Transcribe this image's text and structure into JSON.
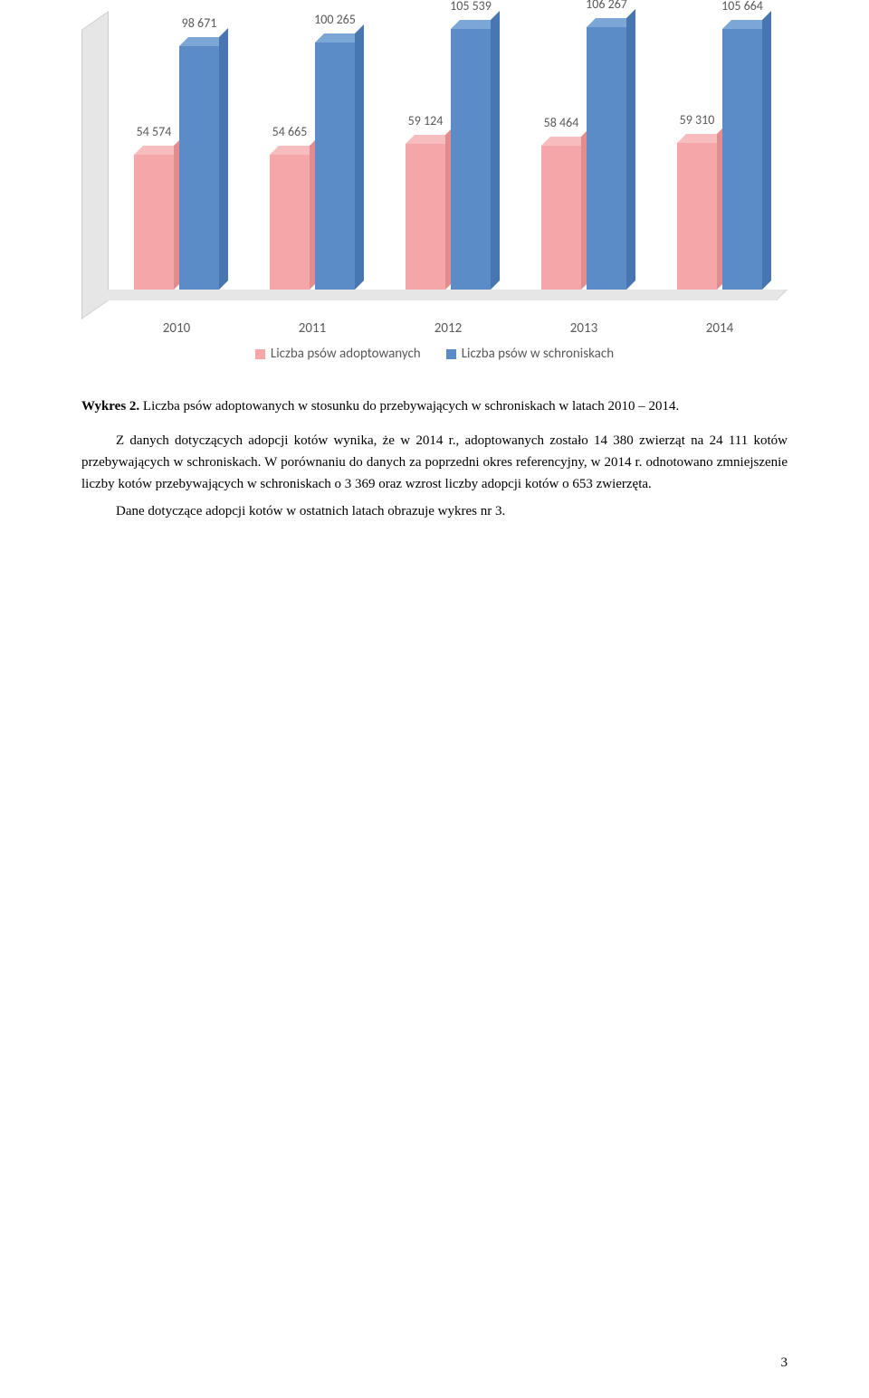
{
  "chart": {
    "type": "bar",
    "categories": [
      "2010",
      "2011",
      "2012",
      "2013",
      "2014"
    ],
    "series": [
      {
        "name": "Liczba psów adoptowanych",
        "color_front": "#f4a6a9",
        "color_top": "#f7bcbe",
        "color_side": "#e18c8f",
        "values": [
          54574,
          54665,
          59124,
          58464,
          59310
        ],
        "labels": [
          "54 574",
          "54 665",
          "59 124",
          "58 464",
          "59 310"
        ]
      },
      {
        "name": "Liczba psów w schroniskach",
        "color_front": "#5b8cc8",
        "color_top": "#7ba6d6",
        "color_side": "#4776b1",
        "values": [
          98671,
          100265,
          105539,
          106267,
          105664
        ],
        "labels": [
          "98 671",
          "100 265",
          "105 539",
          "106 267",
          "105 664"
        ]
      }
    ],
    "ymax": 110000,
    "axis_plane_color": "#e6e6e6",
    "text_color": "#595959",
    "label_fontsize": 14
  },
  "caption": {
    "prefix": "Wykres 2. ",
    "text": "Liczba psów adoptowanych w stosunku do przebywających w schroniskach w latach 2010 – 2014."
  },
  "paragraphs": [
    "Z danych dotyczących adopcji kotów wynika, że w 2014 r., adoptowanych zostało 14 380 zwierząt na 24 111 kotów przebywających w schroniskach. W porównaniu do danych za poprzedni okres referencyjny, w 2014 r. odnotowano zmniejszenie liczby kotów przebywających w schroniskach o 3 369 oraz wzrost liczby adopcji kotów o 653 zwierzęta.",
    "Dane dotyczące adopcji kotów w ostatnich latach obrazuje wykres nr 3."
  ],
  "page_number": "3"
}
